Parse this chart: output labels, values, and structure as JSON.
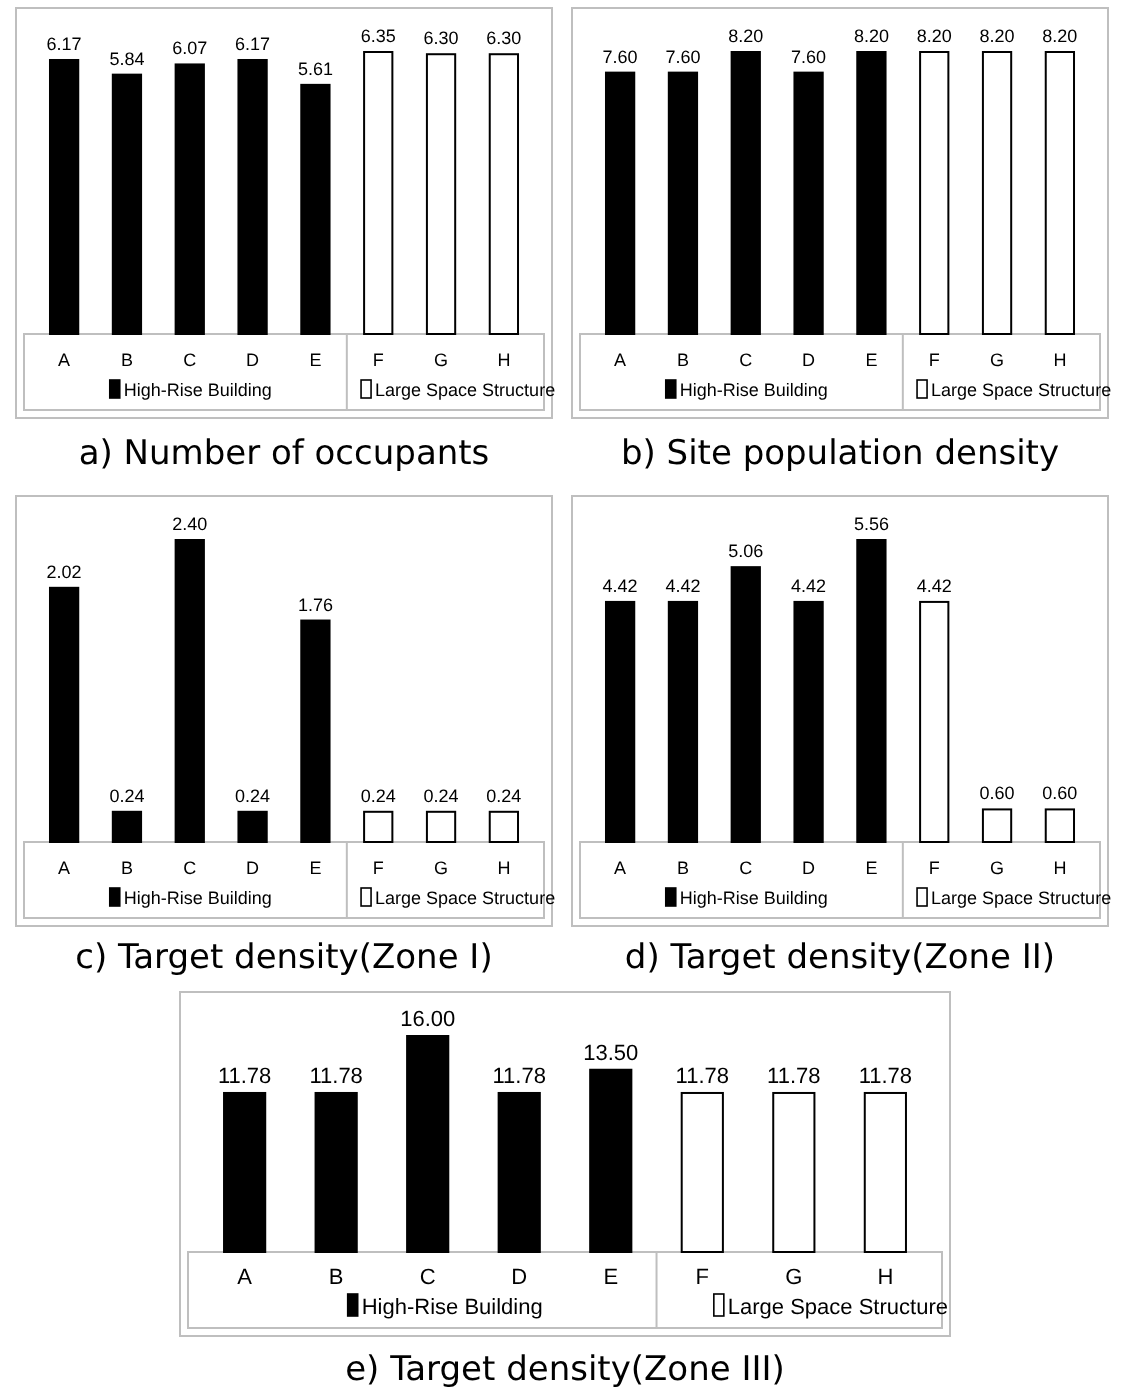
{
  "chart_data": [
    {
      "type": "bar",
      "title": "a) Number of occupants",
      "categories": [
        "A",
        "B",
        "C",
        "D",
        "E",
        "F",
        "G",
        "H"
      ],
      "legend": "bottom",
      "series": [
        {
          "name": "High-Rise Building",
          "color": "#000000",
          "values": [
            6.17,
            5.84,
            6.07,
            6.17,
            5.61,
            null,
            null,
            null
          ],
          "value_labels": [
            "6.17",
            "5.84",
            "6.07",
            "6.17",
            "5.61",
            null,
            null,
            null
          ]
        },
        {
          "name": "Large Space Structure",
          "color": "#ffffff",
          "values": [
            null,
            null,
            null,
            null,
            null,
            6.35,
            6.3,
            6.3
          ],
          "value_labels": [
            null,
            null,
            null,
            null,
            null,
            "6.35",
            "6.30",
            "6.30"
          ]
        }
      ]
    },
    {
      "type": "bar",
      "title": "b) Site population density",
      "categories": [
        "A",
        "B",
        "C",
        "D",
        "E",
        "F",
        "G",
        "H"
      ],
      "legend": "bottom",
      "series": [
        {
          "name": "High-Rise Building",
          "color": "#000000",
          "values": [
            7.6,
            7.6,
            8.2,
            7.6,
            8.2,
            null,
            null,
            null
          ],
          "value_labels": [
            "7.60",
            "7.60",
            "8.20",
            "7.60",
            "8.20",
            null,
            null,
            null
          ]
        },
        {
          "name": "Large Space Structure",
          "color": "#ffffff",
          "values": [
            null,
            null,
            null,
            null,
            null,
            8.2,
            8.2,
            8.2
          ],
          "value_labels": [
            null,
            null,
            null,
            null,
            null,
            "8.20",
            "8.20",
            "8.20"
          ]
        }
      ]
    },
    {
      "type": "bar",
      "title": "c) Target density(Zone I)",
      "categories": [
        "A",
        "B",
        "C",
        "D",
        "E",
        "F",
        "G",
        "H"
      ],
      "legend": "bottom",
      "series": [
        {
          "name": "High-Rise Building",
          "color": "#000000",
          "values": [
            2.02,
            0.24,
            2.4,
            0.24,
            1.76,
            null,
            null,
            null
          ],
          "value_labels": [
            "2.02",
            "0.24",
            "2.40",
            "0.24",
            "1.76",
            null,
            null,
            null
          ]
        },
        {
          "name": "Large Space Structure",
          "color": "#ffffff",
          "values": [
            null,
            null,
            null,
            null,
            null,
            0.24,
            0.24,
            0.24
          ],
          "value_labels": [
            null,
            null,
            null,
            null,
            null,
            "0.24",
            "0.24",
            "0.24"
          ]
        }
      ]
    },
    {
      "type": "bar",
      "title": "d) Target density(Zone II)",
      "categories": [
        "A",
        "B",
        "C",
        "D",
        "E",
        "F",
        "G",
        "H"
      ],
      "legend": "bottom",
      "series": [
        {
          "name": "High-Rise Building",
          "color": "#000000",
          "values": [
            4.42,
            4.42,
            5.06,
            4.42,
            5.56,
            null,
            null,
            null
          ],
          "value_labels": [
            "4.42",
            "4.42",
            "5.06",
            "4.42",
            "5.56",
            null,
            null,
            null
          ]
        },
        {
          "name": "Large Space Structure",
          "color": "#ffffff",
          "values": [
            null,
            null,
            null,
            null,
            null,
            4.42,
            0.6,
            0.6
          ],
          "value_labels": [
            null,
            null,
            null,
            null,
            null,
            "4.42",
            "0.60",
            "0.60"
          ]
        }
      ]
    },
    {
      "type": "bar",
      "title": "e) Target density(Zone III)",
      "categories": [
        "A",
        "B",
        "C",
        "D",
        "E",
        "F",
        "G",
        "H"
      ],
      "legend": "bottom",
      "series": [
        {
          "name": "High-Rise Building",
          "color": "#000000",
          "values": [
            11.78,
            11.78,
            16.0,
            11.78,
            13.5,
            null,
            null,
            null
          ],
          "value_labels": [
            "11.78",
            "11.78",
            "16.00",
            "11.78",
            "13.50",
            null,
            null,
            null
          ]
        },
        {
          "name": "Large Space Structure",
          "color": "#ffffff",
          "values": [
            null,
            null,
            null,
            null,
            null,
            11.78,
            11.78,
            11.78
          ],
          "value_labels": [
            null,
            null,
            null,
            null,
            null,
            "11.78",
            "11.78",
            "11.78"
          ]
        }
      ]
    }
  ]
}
